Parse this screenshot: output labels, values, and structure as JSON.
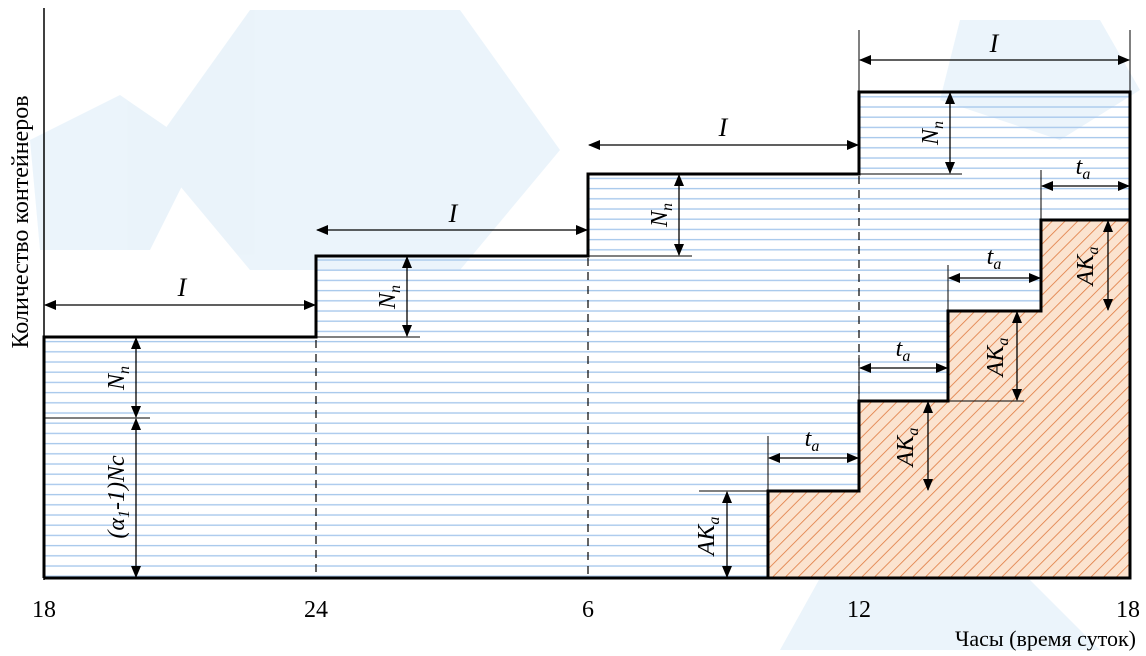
{
  "y_axis_label": "Количество контейнеров",
  "x_axis_label": "Часы (время суток)",
  "x_ticks": [
    "18",
    "24",
    "6",
    "12",
    "18"
  ],
  "interval_label": "I",
  "shift_label": {
    "main": "N",
    "sub": "n"
  },
  "base_label": {
    "prefix": "(α",
    "sub": "1",
    "suffix": "-1)Nc"
  },
  "ta_label": {
    "main": "t",
    "sub": "a"
  },
  "ak_label": {
    "main": "AK",
    "sub": "a"
  },
  "colors": {
    "hatch_lines": "#a9c9ec",
    "cross_hatch": "#e07a3f",
    "cross_fill": "#fbe3cf",
    "outline": "#000000",
    "watermark": "#dcecf7"
  }
}
